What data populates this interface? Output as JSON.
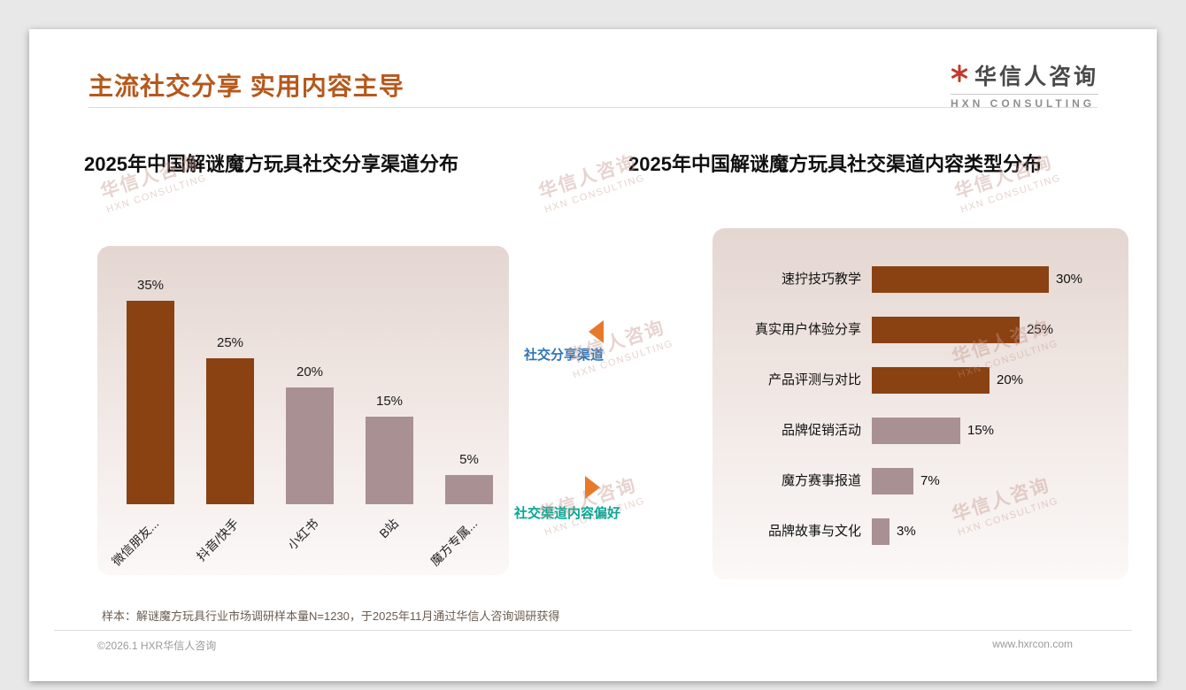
{
  "slide": {
    "title": "主流社交分享 实用内容主导",
    "logo": {
      "cn": "华信人咨询",
      "en": "HXN CONSULTING"
    },
    "watermark": {
      "line1": "华信人咨询",
      "line2": "HXN CONSULTING"
    },
    "annotations": {
      "top": "社交分享渠道",
      "bottom": "社交渠道内容偏好"
    },
    "footnote": "样本：解谜魔方玩具行业市场调研样本量N=1230，于2025年11月通过华信人咨询调研获得",
    "footer": {
      "left": "©2026.1 HXR华信人咨询",
      "right": "www.hxrcon.com"
    },
    "colors": {
      "accent_title": "#B5591C",
      "bar_dark": "#8A4212",
      "bar_light": "#A99093",
      "annotation_top_text": "#2E74B5",
      "annotation_bottom_text": "#00A693",
      "arrow": "#E8792A",
      "logo_mark": "#C23A2B"
    }
  },
  "chart_data": [
    {
      "type": "bar",
      "orientation": "vertical",
      "title": "2025年中国解谜魔方玩具社交分享渠道分布",
      "categories": [
        "微信朋友...",
        "抖音/快手",
        "小红书",
        "B站",
        "魔方专属..."
      ],
      "values": [
        35,
        25,
        20,
        15,
        5
      ],
      "value_labels": [
        "35%",
        "25%",
        "20%",
        "15%",
        "5%"
      ],
      "bar_colors": [
        "#8A4212",
        "#8A4212",
        "#A99093",
        "#A99093",
        "#A99093"
      ],
      "unit": "%",
      "ylim": [
        0,
        40
      ],
      "grid": false,
      "legend": "none"
    },
    {
      "type": "bar",
      "orientation": "horizontal",
      "title": "2025年中国解谜魔方玩具社交渠道内容类型分布",
      "categories": [
        "速拧技巧教学",
        "真实用户体验分享",
        "产品评测与对比",
        "品牌促销活动",
        "魔方赛事报道",
        "品牌故事与文化"
      ],
      "values": [
        30,
        25,
        20,
        15,
        7,
        3
      ],
      "value_labels": [
        "30%",
        "25%",
        "20%",
        "15%",
        "7%",
        "3%"
      ],
      "bar_colors": [
        "#8A4212",
        "#8A4212",
        "#8A4212",
        "#A99093",
        "#A99093",
        "#A99093"
      ],
      "unit": "%",
      "xlim": [
        0,
        35
      ],
      "grid": false,
      "legend": "none"
    }
  ]
}
